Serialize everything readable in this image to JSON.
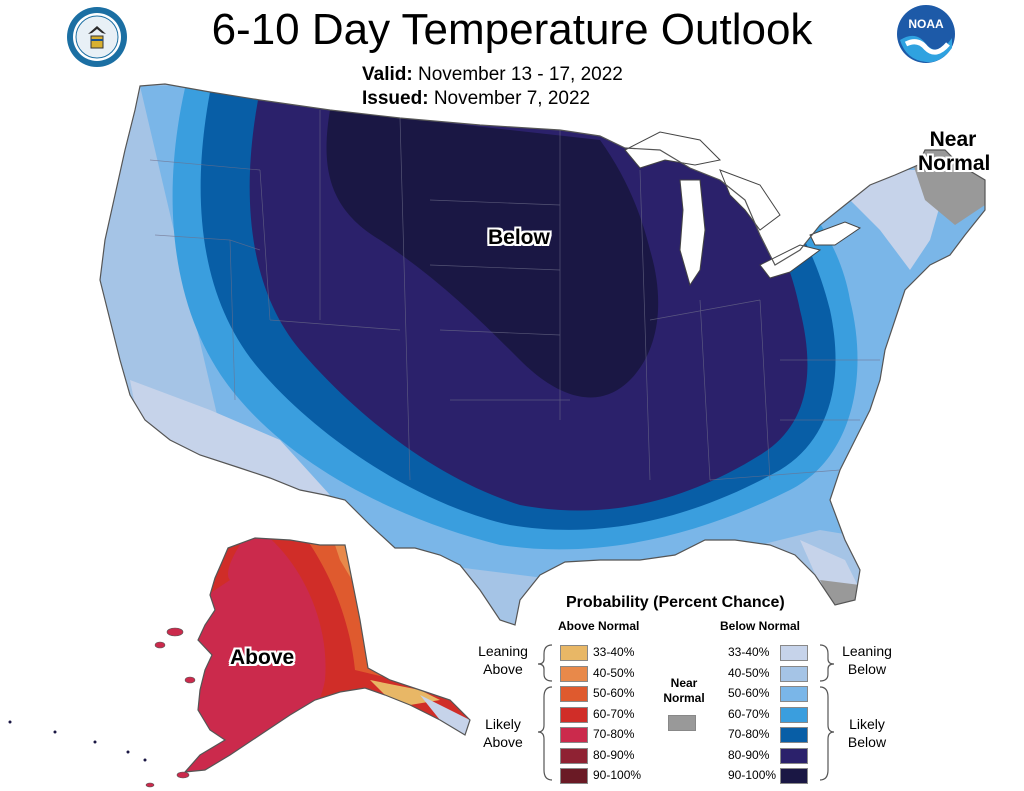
{
  "header": {
    "title": "6-10 Day Temperature Outlook",
    "valid_label": "Valid:",
    "valid_value": "November 13 - 17, 2022",
    "issued_label": "Issued:",
    "issued_value": "November 7, 2022"
  },
  "logos": {
    "left": "doc-seal-icon",
    "right": "noaa-logo-icon",
    "right_text": "NOAA"
  },
  "map_labels": {
    "below": "Below",
    "above": "Above",
    "near_normal": "Near Normal"
  },
  "legend": {
    "title": "Probability (Percent Chance)",
    "above_header": "Above Normal",
    "below_header": "Below Normal",
    "near_header": "Near Normal",
    "leaning_above": "Leaning Above",
    "likely_above": "Likely Above",
    "leaning_below": "Leaning Below",
    "likely_below": "Likely Below",
    "above_items": [
      {
        "label": "33-40%",
        "color": "#e8b766"
      },
      {
        "label": "40-50%",
        "color": "#e8894a"
      },
      {
        "label": "50-60%",
        "color": "#df5a2e"
      },
      {
        "label": "60-70%",
        "color": "#d02d28"
      },
      {
        "label": "70-80%",
        "color": "#cb2a4c"
      },
      {
        "label": "80-90%",
        "color": "#8f2233"
      },
      {
        "label": "90-100%",
        "color": "#6a1a25"
      }
    ],
    "below_items": [
      {
        "label": "33-40%",
        "color": "#c6d3ea"
      },
      {
        "label": "40-50%",
        "color": "#a5c4e6"
      },
      {
        "label": "50-60%",
        "color": "#7ab6e8"
      },
      {
        "label": "60-70%",
        "color": "#3a9ede"
      },
      {
        "label": "70-80%",
        "color": "#085ea6"
      },
      {
        "label": "80-90%",
        "color": "#2b216b"
      },
      {
        "label": "90-100%",
        "color": "#1a1744"
      }
    ],
    "near_color": "#999999"
  }
}
